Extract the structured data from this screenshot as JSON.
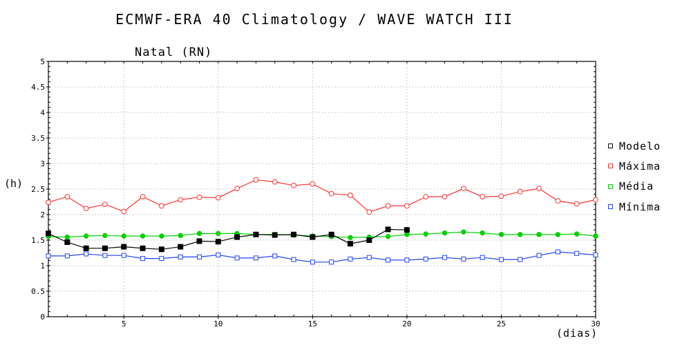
{
  "title": "ECMWF-ERA 40 Climatology / WAVE WATCH III",
  "chart_data": {
    "type": "line",
    "title": "Natal (RN)",
    "xlabel": "(dias)",
    "ylabel": "(h)",
    "xlim": [
      1,
      30
    ],
    "ylim": [
      0,
      5
    ],
    "xticks": [
      5,
      10,
      15,
      20,
      25,
      30
    ],
    "yticks": [
      0,
      0.5,
      1,
      1.5,
      2,
      2.5,
      3,
      3.5,
      4,
      4.5,
      5
    ],
    "grid": true,
    "legend_position": "right",
    "series": [
      {
        "name": "Modelo",
        "color": "#000000",
        "marker": "filled-square",
        "x": [
          1,
          2,
          3,
          4,
          5,
          6,
          7,
          8,
          9,
          10,
          11,
          12,
          13,
          14,
          15,
          16,
          17,
          18,
          19,
          20
        ],
        "values": [
          1.63,
          1.46,
          1.34,
          1.34,
          1.37,
          1.34,
          1.32,
          1.37,
          1.48,
          1.47,
          1.56,
          1.61,
          1.6,
          1.61,
          1.56,
          1.61,
          1.43,
          1.5,
          1.71,
          1.7
        ]
      },
      {
        "name": "Máxima",
        "color": "#ff3030",
        "marker": "open-circle",
        "x": [
          1,
          2,
          3,
          4,
          5,
          6,
          7,
          8,
          9,
          10,
          11,
          12,
          13,
          14,
          15,
          16,
          17,
          18,
          19,
          20,
          21,
          22,
          23,
          24,
          25,
          26,
          27,
          28,
          29,
          30
        ],
        "values": [
          2.24,
          2.35,
          2.12,
          2.2,
          2.06,
          2.35,
          2.17,
          2.29,
          2.34,
          2.33,
          2.51,
          2.68,
          2.64,
          2.57,
          2.6,
          2.41,
          2.38,
          2.05,
          2.17,
          2.17,
          2.35,
          2.35,
          2.51,
          2.35,
          2.36,
          2.45,
          2.51,
          2.27,
          2.21,
          2.29
        ]
      },
      {
        "name": "Média",
        "color": "#00d000",
        "marker": "filled-circle",
        "x": [
          1,
          2,
          3,
          4,
          5,
          6,
          7,
          8,
          9,
          10,
          11,
          12,
          13,
          14,
          15,
          16,
          17,
          18,
          19,
          20,
          21,
          22,
          23,
          24,
          25,
          26,
          27,
          28,
          29,
          30
        ],
        "values": [
          1.57,
          1.56,
          1.58,
          1.59,
          1.58,
          1.58,
          1.58,
          1.59,
          1.63,
          1.63,
          1.63,
          1.61,
          1.61,
          1.6,
          1.58,
          1.57,
          1.55,
          1.56,
          1.57,
          1.61,
          1.62,
          1.64,
          1.66,
          1.64,
          1.61,
          1.61,
          1.61,
          1.61,
          1.62,
          1.58
        ]
      },
      {
        "name": "Mínima",
        "color": "#2040ff",
        "marker": "open-square",
        "x": [
          1,
          2,
          3,
          4,
          5,
          6,
          7,
          8,
          9,
          10,
          11,
          12,
          13,
          14,
          15,
          16,
          17,
          18,
          19,
          20,
          21,
          22,
          23,
          24,
          25,
          26,
          27,
          28,
          29,
          30
        ],
        "values": [
          1.19,
          1.19,
          1.23,
          1.2,
          1.2,
          1.14,
          1.14,
          1.17,
          1.17,
          1.21,
          1.15,
          1.15,
          1.19,
          1.12,
          1.07,
          1.07,
          1.13,
          1.16,
          1.11,
          1.11,
          1.13,
          1.16,
          1.13,
          1.16,
          1.12,
          1.12,
          1.2,
          1.27,
          1.24,
          1.21
        ]
      }
    ]
  }
}
